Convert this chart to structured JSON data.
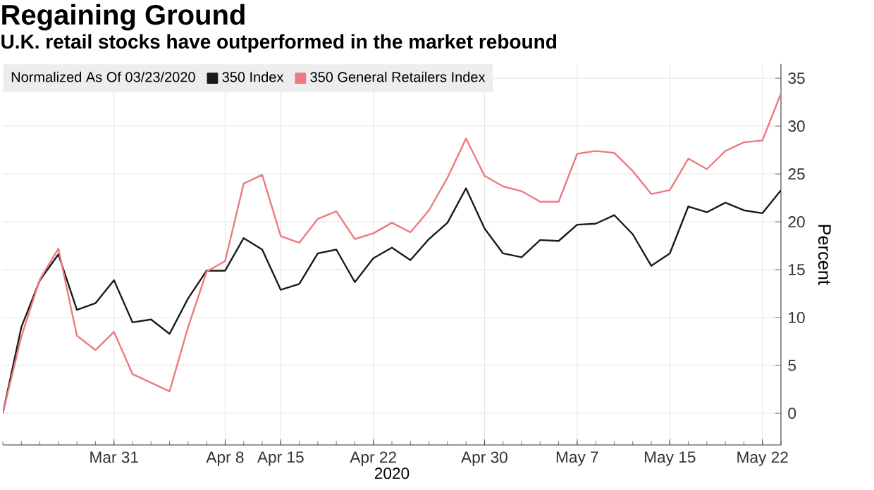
{
  "chart_data": {
    "type": "line",
    "title": "Regaining Ground",
    "subtitle": "U.K. retail stocks have outperformed in the market rebound",
    "legend_title": "Normalized As Of 03/23/2020",
    "xlabel": "2020",
    "ylabel": "Percent",
    "categories": [
      null,
      null,
      null,
      null,
      null,
      null,
      "Mar 31",
      null,
      null,
      null,
      null,
      null,
      "Apr 8",
      null,
      null,
      "Apr 15",
      null,
      null,
      null,
      null,
      "Apr 22",
      null,
      null,
      null,
      null,
      null,
      "Apr 30",
      null,
      null,
      null,
      null,
      "May 7",
      null,
      null,
      null,
      null,
      "May 15",
      null,
      null,
      null,
      null,
      "May 22",
      null
    ],
    "series": [
      {
        "name": "350 Index",
        "color": "#1a1a1a",
        "values": [
          0,
          9.0,
          13.9,
          16.6,
          10.8,
          11.5,
          13.9,
          9.5,
          9.8,
          8.3,
          12.0,
          14.9,
          14.9,
          18.3,
          17.1,
          12.9,
          13.5,
          16.7,
          17.1,
          13.7,
          16.2,
          17.3,
          16.0,
          18.2,
          19.9,
          23.5,
          19.3,
          16.7,
          16.3,
          18.1,
          18.0,
          19.7,
          19.8,
          20.7,
          18.7,
          15.4,
          16.7,
          21.6,
          21.0,
          22.0,
          21.2,
          20.9,
          23.3
        ]
      },
      {
        "name": "350 General Retailers Index",
        "color": "#ec7a80",
        "values": [
          0,
          8.0,
          14.0,
          17.2,
          8.1,
          6.6,
          8.5,
          4.1,
          3.2,
          2.3,
          9.0,
          14.8,
          15.9,
          24.0,
          24.9,
          18.5,
          17.8,
          20.3,
          21.1,
          18.2,
          18.8,
          19.9,
          18.9,
          21.2,
          24.6,
          28.7,
          24.8,
          23.7,
          23.2,
          22.1,
          22.1,
          27.1,
          27.4,
          27.2,
          25.3,
          22.9,
          23.3,
          26.6,
          25.5,
          27.4,
          28.3,
          28.5,
          33.4
        ]
      }
    ],
    "ylim": [
      -3.3,
      36.5
    ],
    "yticks": [
      0,
      5,
      10,
      15,
      20,
      25,
      30,
      35
    ],
    "grid": true,
    "legend": "top left",
    "marker": "none",
    "line_style": "solid"
  }
}
